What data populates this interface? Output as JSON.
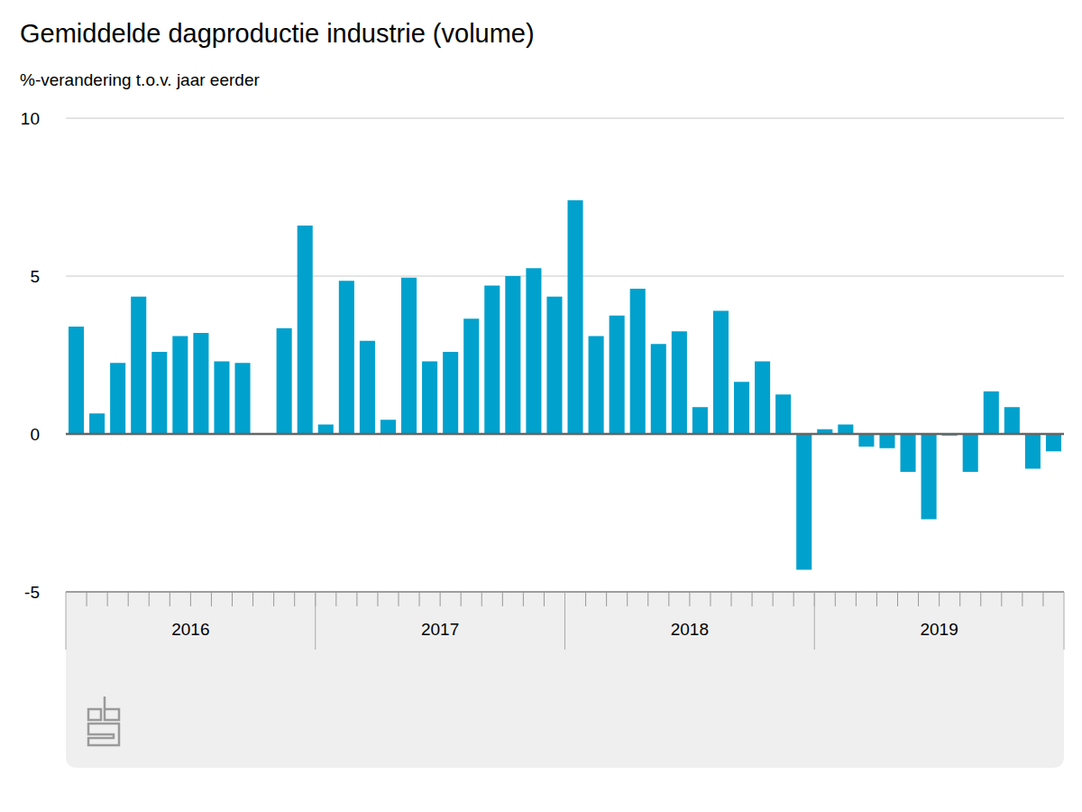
{
  "chart_data": {
    "type": "bar",
    "title": "Gemiddelde dagproductie industrie (volume)",
    "subtitle": "%-verandering t.o.v. jaar eerder",
    "categories": [
      null,
      null,
      null,
      null,
      null,
      null,
      null,
      null,
      null,
      null,
      null,
      null,
      null,
      null,
      null,
      null,
      null,
      null,
      null,
      null,
      null,
      null,
      null,
      null,
      null,
      null,
      null,
      null,
      null,
      null,
      null,
      null,
      null,
      null,
      null,
      null,
      null,
      null,
      null,
      null,
      null,
      null,
      null,
      null,
      null,
      null,
      null,
      null
    ],
    "groups": [
      {
        "label": "2016",
        "size": 12
      },
      {
        "label": "2017",
        "size": 12
      },
      {
        "label": "2018",
        "size": 12
      },
      {
        "label": "2019",
        "size": 12
      }
    ],
    "values": [
      3.4,
      0.65,
      2.25,
      4.35,
      2.6,
      3.1,
      3.2,
      2.3,
      2.25,
      0,
      3.35,
      6.6,
      0.3,
      4.85,
      2.95,
      0.45,
      4.95,
      2.3,
      2.6,
      3.65,
      4.7,
      5.0,
      5.25,
      4.35,
      7.4,
      3.1,
      3.75,
      4.6,
      2.85,
      3.25,
      0.85,
      3.9,
      1.65,
      2.3,
      1.25,
      -4.3,
      0.15,
      0.3,
      -0.4,
      -0.45,
      -1.2,
      -2.7,
      -0.05,
      -1.2,
      1.35,
      0.85,
      -1.1,
      -0.55
    ],
    "color": "#00a1cd",
    "ylim": [
      -5,
      10
    ],
    "yticks": [
      -5,
      0,
      5,
      10
    ],
    "grid": true
  }
}
